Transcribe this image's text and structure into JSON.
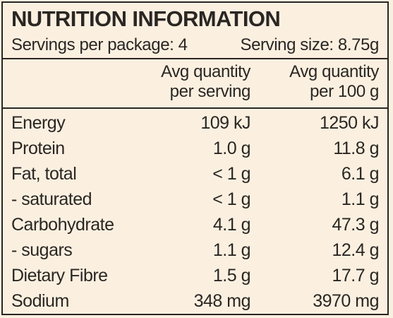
{
  "panel": {
    "title": "NUTRITION INFORMATION",
    "servings_per_package": "Servings per package: 4",
    "serving_size": "Serving size: 8.75g"
  },
  "columns": {
    "per_serving_line1": "Avg quantity",
    "per_serving_line2": "per serving",
    "per_100g_line1": "Avg quantity",
    "per_100g_line2": "per 100 g"
  },
  "rows": [
    {
      "label": "Energy",
      "per_serving": "109 kJ",
      "per_100g": "1250 kJ"
    },
    {
      "label": "Protein",
      "per_serving": "1.0 g",
      "per_100g": "11.8 g"
    },
    {
      "label": "Fat, total",
      "per_serving": "< 1 g",
      "per_100g": "6.1 g"
    },
    {
      "label": "- saturated",
      "per_serving": "< 1 g",
      "per_100g": "1.1 g"
    },
    {
      "label": "Carbohydrate",
      "per_serving": "4.1 g",
      "per_100g": "47.3 g"
    },
    {
      "label": "- sugars",
      "per_serving": "1.1 g",
      "per_100g": "12.4 g"
    },
    {
      "label": "Dietary Fibre",
      "per_serving": "1.5 g",
      "per_100g": "17.7 g"
    },
    {
      "label": "Sodium",
      "per_serving": "348 mg",
      "per_100g": "3970 mg"
    }
  ],
  "colors": {
    "background": "#fbf0e0",
    "ink": "#2a2623"
  }
}
